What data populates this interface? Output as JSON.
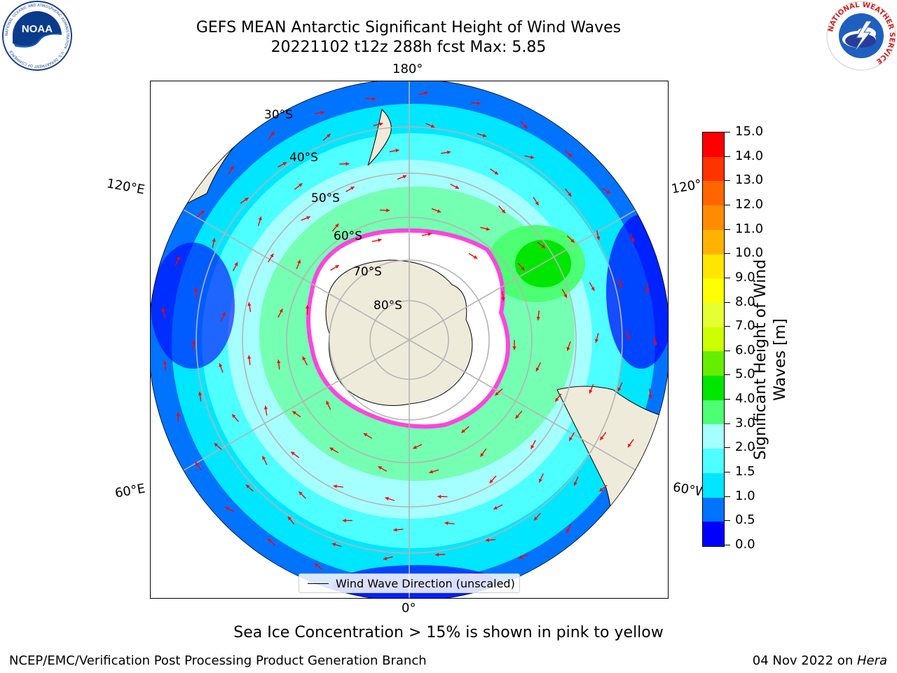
{
  "header": {
    "title_line1": "GEFS MEAN Antarctic Significant Height of Wind Waves",
    "title_line2": "20221102 t12z 288h fcst   Max: 5.85"
  },
  "logos": {
    "left": "NOAA",
    "left_ring": "NATIONAL OCEANIC AND ATMOSPHERIC ADMINISTRATION · U.S. DEPARTMENT OF COMMERCE",
    "right_ring": "NATIONAL WEATHER SERVICE"
  },
  "map": {
    "longitude_labels": [
      "180°",
      "120°E",
      "120°W",
      "60°E",
      "60°W",
      "0°"
    ],
    "latitude_labels": [
      "30°S",
      "40°S",
      "50°S",
      "60°S",
      "70°S",
      "80°S"
    ],
    "legend_label": "Wind Wave Direction (unscaled)",
    "colors": {
      "land": "#efebdb",
      "arrow": "#ff0000",
      "ice_edge": "#ff44dd",
      "gridline": "#b4b4b4"
    }
  },
  "colorbar": {
    "label_line1": "Significant Height of Wind",
    "label_line2": "Waves [m]",
    "ticks": [
      "15.0",
      "14.0",
      "13.0",
      "12.0",
      "11.0",
      "10.0",
      "9.0",
      "8.0",
      "7.0",
      "6.0",
      "5.0",
      "4.0",
      "3.0",
      "2.0",
      "1.5",
      "1.0",
      "0.5",
      "0.0"
    ],
    "bins": [
      {
        "from": 0.0,
        "to": 0.5,
        "color": "#0000ff"
      },
      {
        "from": 0.5,
        "to": 1.0,
        "color": "#0073ff"
      },
      {
        "from": 1.0,
        "to": 1.5,
        "color": "#00e6ff"
      },
      {
        "from": 1.5,
        "to": 2.0,
        "color": "#4dffff"
      },
      {
        "from": 2.0,
        "to": 3.0,
        "color": "#a6ffff"
      },
      {
        "from": 3.0,
        "to": 4.0,
        "color": "#4dff73"
      },
      {
        "from": 4.0,
        "to": 5.0,
        "color": "#00e600"
      },
      {
        "from": 5.0,
        "to": 6.0,
        "color": "#66ee00"
      },
      {
        "from": 6.0,
        "to": 7.0,
        "color": "#ccff00"
      },
      {
        "from": 7.0,
        "to": 8.0,
        "color": "#e6ff33"
      },
      {
        "from": 8.0,
        "to": 9.0,
        "color": "#ffff00"
      },
      {
        "from": 9.0,
        "to": 10.0,
        "color": "#ffe600"
      },
      {
        "from": 10.0,
        "to": 11.0,
        "color": "#ffb300"
      },
      {
        "from": 11.0,
        "to": 12.0,
        "color": "#ff8c00"
      },
      {
        "from": 12.0,
        "to": 13.0,
        "color": "#ff6600"
      },
      {
        "from": 13.0,
        "to": 14.0,
        "color": "#ff3300"
      },
      {
        "from": 14.0,
        "to": 15.0,
        "color": "#ff0000"
      }
    ]
  },
  "footer": {
    "note": "Sea Ice Concentration > 15% is shown in pink to yellow",
    "credit": "NCEP/EMC/Verification Post Processing Product Generation Branch",
    "date": "04 Nov 2022 on ",
    "machine": "Hera"
  }
}
